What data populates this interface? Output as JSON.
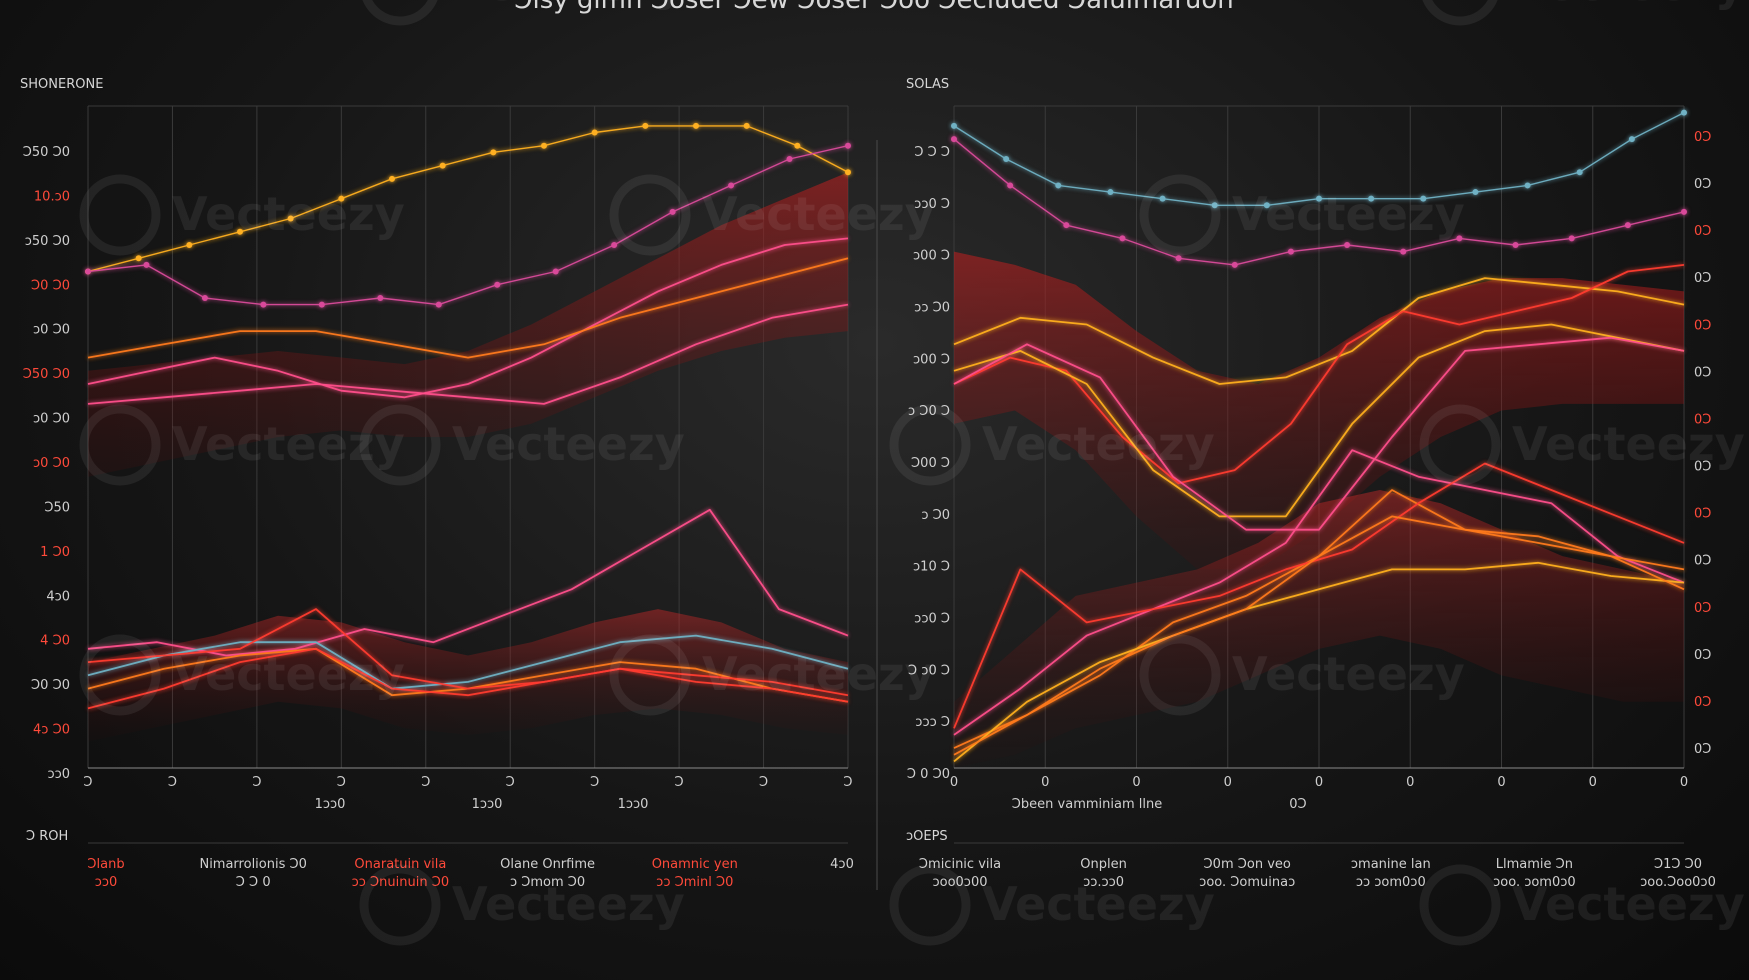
{
  "page_title": "Ͻisy gimn Ͻoser Ͻew Ͻoser Ͻoo Ͻecluded Ͻalulmaruon",
  "watermark": {
    "text": "Vecteezy",
    "logo_icon": "vecteezy-v-logo-icon"
  },
  "colors": {
    "background": "#141414",
    "grid": "#3a3a3a",
    "axis": "#8a8a8a",
    "band": "#8a1b1b",
    "red": "#ff3b30",
    "orange": "#ff7a1a",
    "yellow": "#ffb020",
    "pink": "#ff4f8b",
    "magenta": "#d94a9a",
    "teal": "#6fb1c4",
    "label": "#d0d0d0",
    "label_red": "#ff4a3a"
  },
  "chart_data": [
    {
      "type": "line",
      "panel_label": "SHONERONE",
      "y_tick_labels": [
        "Ͻ50 Ͻ0",
        "10.ͻ0",
        "ͻ50 Ͻ0",
        "Ͻ0 Ͻ0",
        "ͻ0 Ͻ0",
        "Ͻ50 Ͻ0",
        "ͻ0 Ͻ0",
        "ͻ0 Ͻ0",
        "Ͻ50",
        "1 Ͻ0",
        "4ͻ0",
        "4 Ͻ0",
        "Ͻ0 Ͻ0",
        "4ͻ Ͻ0",
        "ͻͻ0"
      ],
      "x_tick_labels": [
        "Ͻ",
        "Ͻ",
        "Ͻ",
        "Ͻ",
        "Ͻ",
        "Ͻ",
        "Ͻ",
        "Ͻ",
        "Ͻ",
        "Ͻ"
      ],
      "x_sub_labels": [
        "1ͻͻ0",
        "1ͻͻ0",
        "1ͻͻ0"
      ],
      "footer_label": "Ͻ ROH",
      "footer_items": [
        {
          "top": "Ͻlanb",
          "bottom": "ͻͻ0"
        },
        {
          "top": "Nimarrolionis Ͻ0",
          "bottom": "Ͻ Ͻ 0"
        },
        {
          "top": "Onaratuin vila",
          "bottom": "ͻͻ Ͻnuinuin Ͻ0"
        },
        {
          "top": "Olane Onrfime",
          "bottom": "ͻ Ͻmom Ͻ0"
        },
        {
          "top": "Onamnic yen",
          "bottom": "ͻͻ Ͻminl Ͻ0"
        },
        {
          "top": "4ͻ0",
          "bottom": ""
        }
      ],
      "series": [
        {
          "values": [
            75,
            77,
            79,
            81,
            83,
            86,
            89,
            91,
            93,
            94,
            96,
            97,
            97,
            97,
            94,
            90
          ]
        },
        {
          "values": [
            75,
            76,
            71,
            70,
            70,
            71,
            70,
            73,
            75,
            79,
            84,
            88,
            92,
            94
          ]
        },
        {
          "values": [
            58,
            60,
            62,
            60,
            57,
            56,
            58,
            62,
            67,
            72,
            76,
            79,
            80
          ]
        },
        {
          "values": [
            62,
            64,
            66,
            66,
            64,
            62,
            64,
            68,
            71,
            74,
            77
          ]
        },
        {
          "values": [
            55,
            56,
            57,
            58,
            57,
            56,
            55,
            59,
            64,
            68,
            70
          ]
        },
        {
          "values": [
            18,
            19,
            17,
            18,
            21,
            19,
            23,
            27,
            33,
            39,
            24,
            20
          ]
        },
        {
          "values": [
            14,
            17,
            19,
            19,
            12,
            13,
            16,
            19,
            20,
            18,
            15
          ]
        },
        {
          "values": [
            12,
            15,
            17,
            18,
            11,
            12,
            14,
            16,
            15,
            12,
            10
          ]
        },
        {
          "values": [
            9,
            12,
            16,
            18,
            12,
            11,
            13,
            15,
            14,
            13,
            11
          ]
        },
        {
          "values": [
            16,
            17,
            18,
            24,
            14,
            12,
            13,
            15,
            13,
            12,
            10
          ]
        }
      ]
    },
    {
      "type": "line",
      "panel_label": "SOLAS",
      "y_tick_labels_left": [
        "Ͻ Ͻ Ͻ",
        "ͻͻ0 Ͻ",
        "ͻ00 Ͻ",
        "ͻͻ Ͻ0",
        "ͻ00 Ͻ",
        "ͻ Ͻ0 Ͻ",
        "Ͻ00 Ͻ",
        "ͻ Ͻ0",
        "ͻ10 Ͻ",
        "ͻͻ0 Ͻ",
        "Ͻ ͻ0 Ͻ",
        "ͻͻͻ Ͻ",
        "Ͻ 0 Ͻ0"
      ],
      "y_tick_labels_right": [
        "0Ͻ",
        "0Ͻ",
        "0Ͻ",
        "0Ͻ",
        "0Ͻ",
        "0Ͻ",
        "0Ͻ",
        "0Ͻ",
        "0Ͻ",
        "0Ͻ",
        "0Ͻ",
        "0Ͻ",
        "0Ͻ",
        "0Ͻ"
      ],
      "x_tick_labels": [
        "0",
        "0",
        "0",
        "0",
        "0",
        "0",
        "0",
        "0",
        "0"
      ],
      "x_sub_labels": [
        "Ͻbeen vamminiam llne",
        "0Ͻ"
      ],
      "footer_label": "ͻOEPS",
      "footer_items": [
        {
          "top": "Ͻmicinic vila",
          "bottom": "ͻoo0ͻ00"
        },
        {
          "top": "Onplen",
          "bottom": "ͻͻ.ͻͻ0"
        },
        {
          "top": "Ͻ0m Ͻon veo",
          "bottom": "ͻoo. Ͻomuinaͻ"
        },
        {
          "top": "ͻmanine lan",
          "bottom": "ͻͻ ͻom0ͻ0"
        },
        {
          "top": "Llmamie Ͻn",
          "bottom": "ͻoo. ͻom0ͻ0"
        },
        {
          "top": "Ͻ1Ͻ Ͻ0",
          "bottom": "ͻoo.Ͻoo0ͻ0"
        }
      ],
      "series": [
        {
          "values": [
            97,
            92,
            88,
            87,
            86,
            85,
            85,
            86,
            86,
            86,
            87,
            88,
            90,
            95,
            99
          ]
        },
        {
          "values": [
            95,
            88,
            82,
            80,
            77,
            76,
            78,
            79,
            78,
            80,
            79,
            80,
            82,
            84
          ]
        },
        {
          "values": [
            64,
            68,
            67,
            62,
            58,
            59,
            63,
            71,
            74,
            73,
            72,
            70
          ]
        },
        {
          "values": [
            58,
            62,
            60,
            50,
            43,
            45,
            52,
            64,
            69,
            67,
            69,
            71,
            75,
            76
          ]
        },
        {
          "values": [
            60,
            63,
            58,
            45,
            38,
            38,
            52,
            62,
            66,
            67,
            65,
            63
          ]
        },
        {
          "values": [
            58,
            64,
            59,
            44,
            36,
            36,
            50,
            63,
            64,
            65,
            63
          ]
        },
        {
          "values": [
            5,
            12,
            20,
            24,
            28,
            34,
            48,
            44,
            42,
            40,
            32,
            28
          ]
        },
        {
          "values": [
            3,
            8,
            14,
            22,
            26,
            32,
            42,
            36,
            34,
            32,
            30
          ]
        },
        {
          "values": [
            1,
            10,
            16,
            20,
            24,
            27,
            30,
            30,
            31,
            29,
            28
          ]
        },
        {
          "values": [
            6,
            30,
            22,
            24,
            26,
            30,
            33,
            40,
            46,
            42,
            38,
            34
          ]
        },
        {
          "values": [
            2,
            8,
            15,
            20,
            24,
            32,
            38,
            36,
            35,
            32,
            27
          ]
        }
      ]
    }
  ]
}
